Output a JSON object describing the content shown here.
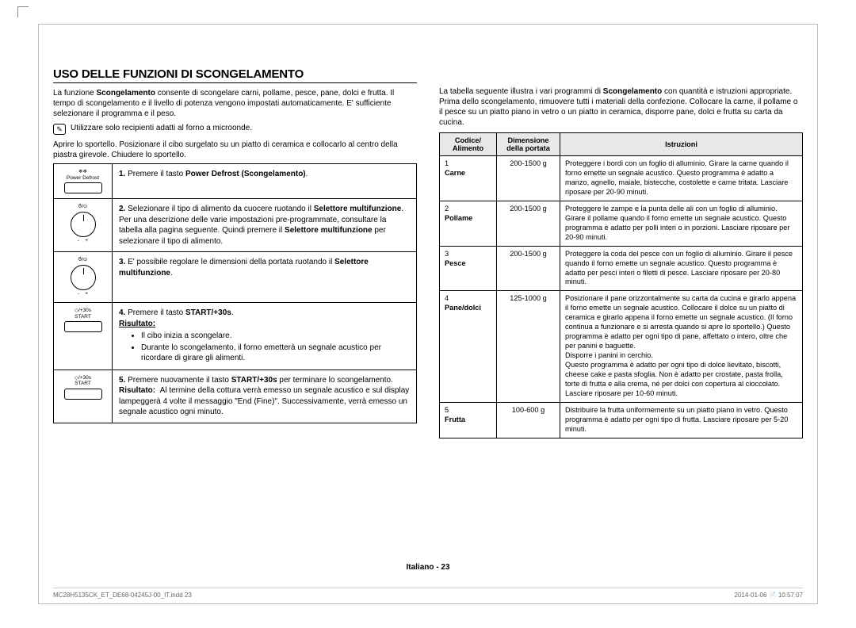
{
  "title": "USO DELLE FUNZIONI DI SCONGELAMENTO",
  "intro_left": "La funzione <b>Scongelamento</b> consente di scongelare carni, pollame, pesce, pane, dolci e frutta. Il tempo di scongelamento e il livello di potenza vengono impostati automaticamente. E' sufficiente selezionare il programma e il peso.",
  "note_left": "Utilizzare solo recipienti adatti al forno a microonde.",
  "open_left": "Aprire lo sportello. Posizionare il cibo surgelato su un piatto di ceramica e collocarlo al centro della piastra girevole. Chiudere lo sportello.",
  "intro_right": "La tabella seguente illustra i vari programmi di <b>Scongelamento</b> con quantità e istruzioni appropriate. Prima dello scongelamento, rimuovere tutti i materiali della confezione. Collocare la carne, il pollame o il pesce su un piatto piano in vetro o un piatto in ceramica, disporre pane, dolci e frutta su carta da cucina.",
  "steps": [
    {
      "icon": "power_defrost",
      "icon_label_top": "❄❄",
      "icon_label_mid": "Power Defrost",
      "num": "1.",
      "html": "Premere il tasto <b>Power Defrost (Scongelamento)</b>."
    },
    {
      "icon": "dial",
      "num": "2.",
      "html": "Selezionare il tipo di alimento da cuocere ruotando il <b>Selettore multifunzione</b>. Per una descrizione delle varie impostazioni pre-programmate, consultare la tabella alla pagina seguente. Quindi premere il <b>Selettore multifunzione</b> per selezionare il tipo di alimento."
    },
    {
      "icon": "dial",
      "num": "3.",
      "html": "E' possibile regolare le dimensioni della portata ruotando il <b>Selettore multifunzione</b>."
    },
    {
      "icon": "start",
      "icon_label_top": "◇/+30s",
      "icon_label_mid": "START",
      "num": "4.",
      "html": "Premere il tasto <b>START/+30s</b>.<br><b><u>Risultato:</u></b>",
      "bullets": [
        "Il cibo inizia a scongelare.",
        "Durante lo scongelamento, il forno emetterà un segnale acustico per ricordare di girare gli alimenti."
      ]
    },
    {
      "icon": "start",
      "icon_label_top": "◇/+30s",
      "icon_label_mid": "START",
      "num": "5.",
      "html": "Premere nuovamente il tasto <b>START/+30s</b> per terminare lo scongelamento.<br><b>Risultato:</b>&nbsp;&nbsp;Al termine della cottura verrà emesso un segnale acustico e sul display lampeggerà 4 volte il messaggio \"End (Fine)\". Successivamente, verrà emesso un segnale acustico ogni minuto."
    }
  ],
  "prog_headers": {
    "code": "Codice/\nAlimento",
    "dim": "Dimensione della portata",
    "instr": "Istruzioni"
  },
  "programs": [
    {
      "code": "1\nCarne",
      "dim": "200-1500 g",
      "instr": "Proteggere i bordi con un foglio di alluminio. Girare la carne quando il forno emette un segnale acustico. Questo programma è adatto a manzo, agnello, maiale, bistecche, costolette e carne tritata. Lasciare riposare per 20-90 minuti."
    },
    {
      "code": "2\nPollame",
      "dim": "200-1500 g",
      "instr": "Proteggere le zampe e la punta delle ali con un foglio di alluminio. Girare il pollame quando il forno emette un segnale acustico. Questo programma è adatto per polli interi o in porzioni. Lasciare riposare per 20-90 minuti."
    },
    {
      "code": "3\nPesce",
      "dim": "200-1500 g",
      "instr": "Proteggere la coda del pesce con un foglio di alluminio. Girare il pesce quando il forno emette un segnale acustico. Questo programma è adatto per pesci interi o filetti di pesce. Lasciare riposare per 20-80 minuti."
    },
    {
      "code": "4\nPane/dolci",
      "dim": "125-1000 g",
      "instr": "Posizionare il pane orizzontalmente su carta da cucina e girarlo appena il forno emette un segnale acustico. Collocare il dolce su un piatto di ceramica e girarlo appena il forno emette un segnale acustico. (Il forno continua a funzionare e si arresta quando si apre lo sportello.) Questo programma è adatto per ogni tipo di pane, affettato o intero, oltre che per panini e baguette.\nDisporre i panini in cerchio.\nQuesto programma è adatto per ogni tipo di dolce lievitato, biscotti, cheese cake e pasta sfoglia. Non è adatto per crostate, pasta frolla, torte di frutta e alla crema, né per dolci con copertura al cioccolato.\nLasciare riposare per 10-60 minuti."
    },
    {
      "code": "5\nFrutta",
      "dim": "100-600 g",
      "instr": "Distribuire la frutta uniformemente su un piatto piano in vetro. Questo programma è adatto per ogni tipo di frutta. Lasciare riposare per 5-20 minuti."
    }
  ],
  "footer_center": "Italiano - 23",
  "footer_left": "MC28H5135CK_ET_DE68-04245J-00_IT.indd   23",
  "footer_right": "2014-01-06   📄 10:57:07"
}
